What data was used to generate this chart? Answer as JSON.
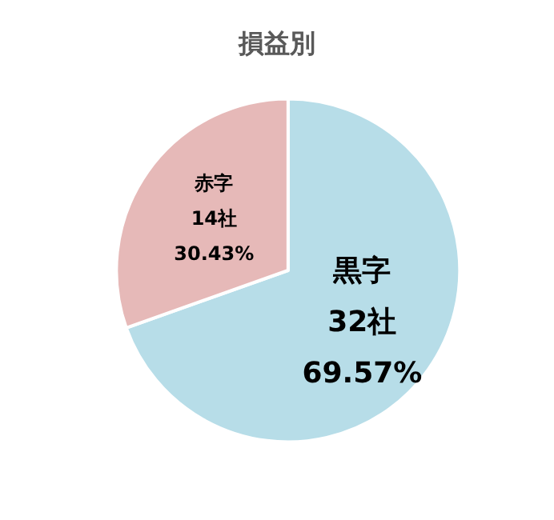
{
  "chart_data": {
    "type": "pie",
    "title": "損益別",
    "categories": [
      "黒字",
      "赤字"
    ],
    "values": [
      32,
      14
    ],
    "value_labels": [
      "32社\n69.57%",
      "14社\n30.43%"
    ],
    "colors": [
      "#b7dde8",
      "#e6b9b8"
    ],
    "legend": false
  }
}
